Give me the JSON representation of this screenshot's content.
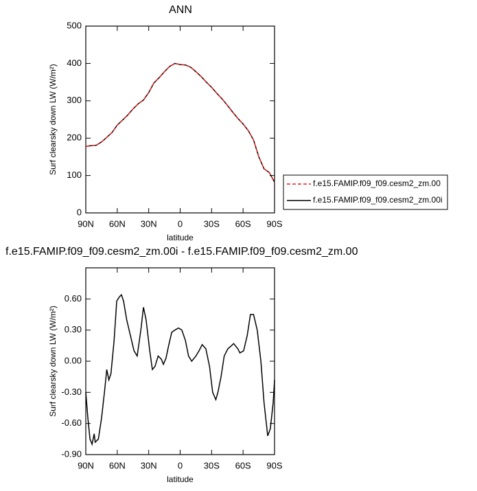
{
  "chart_data": [
    {
      "type": "line",
      "title": "ANN",
      "xlabel": "latitude",
      "ylabel": "Surf clearsky down LW (W/m²)",
      "x": [
        90,
        85,
        80,
        75,
        70,
        65,
        60,
        55,
        50,
        45,
        40,
        35,
        30,
        25,
        20,
        15,
        10,
        5,
        0,
        -5,
        -10,
        -15,
        -20,
        -25,
        -30,
        -35,
        -40,
        -45,
        -50,
        -55,
        -60,
        -65,
        -70,
        -75,
        -80,
        -85,
        -90
      ],
      "series": [
        {
          "name": "f.e15.FAMIP.f09_f09.cesm2_zm.00",
          "color": "#e8211e",
          "dash": true,
          "values": [
            178,
            180,
            181,
            190,
            202,
            215,
            235,
            248,
            262,
            278,
            292,
            302,
            322,
            348,
            362,
            378,
            392,
            400,
            397,
            396,
            390,
            378,
            365,
            350,
            336,
            320,
            305,
            288,
            270,
            253,
            238,
            220,
            195,
            150,
            118,
            108,
            82
          ]
        },
        {
          "name": "f.e15.FAMIP.f09_f09.cesm2_zm.00i",
          "color": "#000000",
          "dash": false,
          "values": [
            178,
            180,
            181,
            190,
            202,
            215,
            235,
            248,
            262,
            278,
            292,
            302,
            322,
            348,
            362,
            378,
            392,
            400,
            397,
            396,
            390,
            378,
            365,
            350,
            336,
            320,
            305,
            288,
            270,
            253,
            238,
            220,
            195,
            150,
            118,
            108,
            82
          ]
        }
      ],
      "xlim": [
        90,
        -90
      ],
      "xticks": [
        {
          "value": 90,
          "label": "90N"
        },
        {
          "value": 60,
          "label": "60N"
        },
        {
          "value": 30,
          "label": "30N"
        },
        0,
        {
          "value": -30,
          "label": "30S"
        },
        {
          "value": -60,
          "label": "60S"
        },
        {
          "value": -90,
          "label": "90S"
        }
      ],
      "ylim": [
        0,
        500
      ],
      "yticks": [
        0,
        100,
        200,
        300,
        400,
        500
      ],
      "legend": "right"
    },
    {
      "type": "line",
      "title": "f.e15.FAMIP.f09_f09.cesm2_zm.00i - f.e15.FAMIP.f09_f09.cesm2_zm.00",
      "xlabel": "latitude",
      "ylabel": "Surf clearsky down LW (W/m²)",
      "x": [
        90,
        88,
        86,
        84,
        82,
        81,
        78,
        75,
        72,
        70,
        68,
        66,
        63,
        60.5,
        58,
        56,
        54,
        51,
        47.5,
        44,
        41,
        37.5,
        35,
        32.5,
        29,
        26.5,
        24,
        21,
        18,
        16,
        13.5,
        11,
        8,
        5,
        1.6,
        -1.6,
        -5,
        -8,
        -11,
        -15,
        -18,
        -21,
        -24.5,
        -28,
        -31,
        -34,
        -36,
        -39,
        -42,
        -45.5,
        -49,
        -51,
        -55,
        -57,
        -60.5,
        -64,
        -67,
        -70,
        -73.5,
        -77,
        -80,
        -83.5,
        -86,
        -88.7,
        -90
      ],
      "series": [
        {
          "color": "#000000",
          "dash": false,
          "values": [
            -0.3,
            -0.55,
            -0.75,
            -0.8,
            -0.7,
            -0.78,
            -0.75,
            -0.55,
            -0.28,
            -0.08,
            -0.18,
            -0.12,
            0.2,
            0.58,
            0.62,
            0.64,
            0.58,
            0.4,
            0.25,
            0.1,
            0.05,
            0.3,
            0.52,
            0.4,
            0.1,
            -0.08,
            -0.05,
            0.05,
            0.02,
            -0.03,
            0.03,
            0.15,
            0.28,
            0.3,
            0.32,
            0.3,
            0.2,
            0.05,
            0.0,
            0.05,
            0.1,
            0.16,
            0.12,
            -0.05,
            -0.3,
            -0.37,
            -0.3,
            -0.15,
            0.05,
            0.12,
            0.15,
            0.17,
            0.12,
            0.08,
            0.1,
            0.25,
            0.45,
            0.45,
            0.3,
            0.0,
            -0.4,
            -0.72,
            -0.65,
            -0.4,
            -0.18
          ]
        }
      ],
      "xlim": [
        90,
        -90
      ],
      "xticks": [
        {
          "value": 90,
          "label": "90N"
        },
        {
          "value": 60,
          "label": "60N"
        },
        {
          "value": 30,
          "label": "30N"
        },
        0,
        {
          "value": -30,
          "label": "30S"
        },
        {
          "value": -60,
          "label": "60S"
        },
        {
          "value": -90,
          "label": "90S"
        }
      ],
      "ylim": [
        -0.9,
        0.9
      ],
      "yticks": [
        {
          "value": -0.9,
          "label": "-0.90"
        },
        {
          "value": -0.6,
          "label": "-0.60"
        },
        {
          "value": -0.3,
          "label": "-0.30"
        },
        {
          "value": 0,
          "label": "0.00"
        },
        {
          "value": 0.3,
          "label": "0.30"
        },
        {
          "value": 0.6,
          "label": "0.60"
        }
      ]
    }
  ]
}
